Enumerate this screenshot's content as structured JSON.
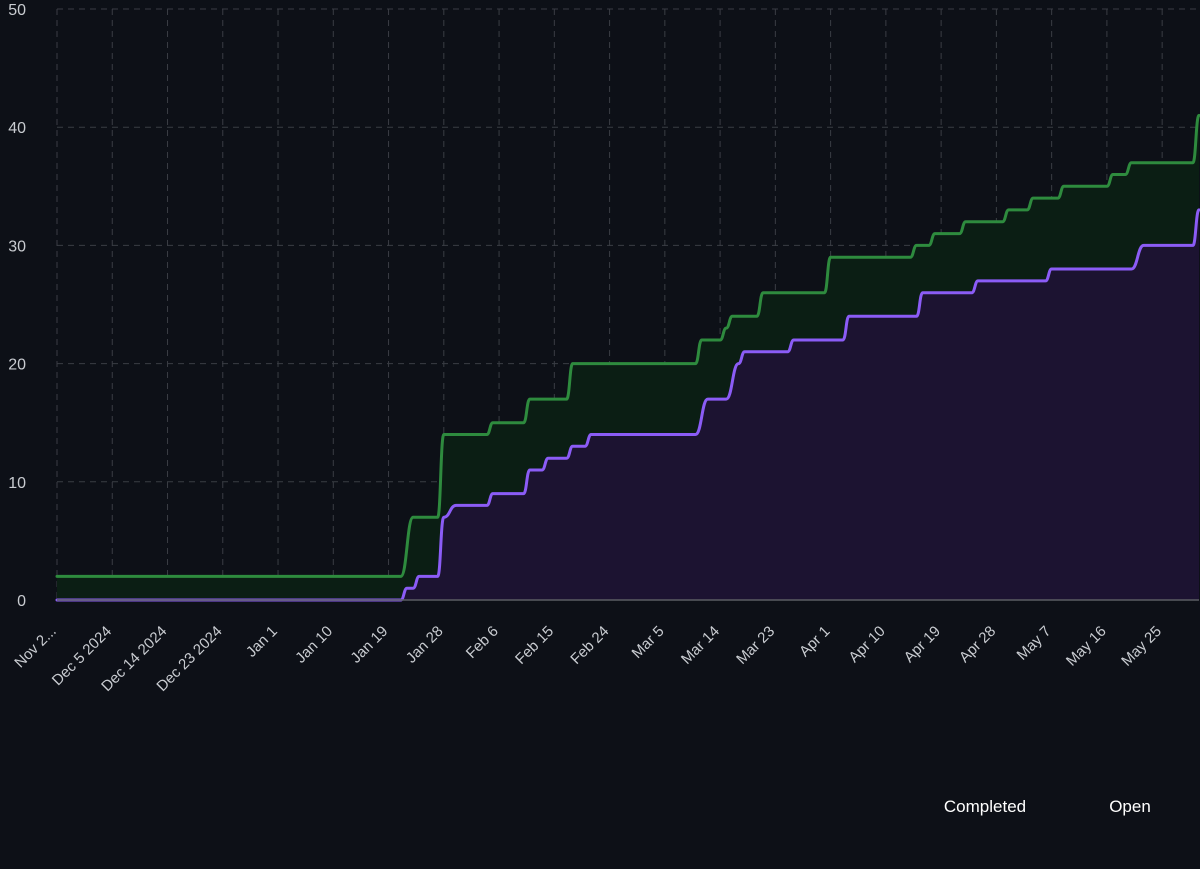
{
  "colors": {
    "background": "#0d1017",
    "grid": "#3a3d44",
    "axis": "#5b5d63",
    "completed": "#2e8b3e",
    "completed_fill": "#0b1e14",
    "open": "#8b5cf6",
    "open_fill": "#1c1331"
  },
  "legend": {
    "position": "bottom-right",
    "completed": "Completed",
    "open": "Open"
  },
  "chart_data": {
    "type": "area",
    "grid": true,
    "ylim": [
      0,
      50
    ],
    "yticks": [
      "0",
      "10",
      "20",
      "30",
      "40",
      "50"
    ],
    "xlim": [
      "2024-11-26",
      "2025-05-31"
    ],
    "xticks": [
      {
        "date": "2024-11-26",
        "label": "Nov 2..."
      },
      {
        "date": "2024-12-05",
        "label": "Dec 5 2024"
      },
      {
        "date": "2024-12-14",
        "label": "Dec 14 2024"
      },
      {
        "date": "2024-12-23",
        "label": "Dec 23 2024"
      },
      {
        "date": "2025-01-01",
        "label": "Jan 1"
      },
      {
        "date": "2025-01-10",
        "label": "Jan 10"
      },
      {
        "date": "2025-01-19",
        "label": "Jan 19"
      },
      {
        "date": "2025-01-28",
        "label": "Jan 28"
      },
      {
        "date": "2025-02-06",
        "label": "Feb 6"
      },
      {
        "date": "2025-02-15",
        "label": "Feb 15"
      },
      {
        "date": "2025-02-24",
        "label": "Feb 24"
      },
      {
        "date": "2025-03-05",
        "label": "Mar 5"
      },
      {
        "date": "2025-03-14",
        "label": "Mar 14"
      },
      {
        "date": "2025-03-23",
        "label": "Mar 23"
      },
      {
        "date": "2025-04-01",
        "label": "Apr 1"
      },
      {
        "date": "2025-04-10",
        "label": "Apr 10"
      },
      {
        "date": "2025-04-19",
        "label": "Apr 19"
      },
      {
        "date": "2025-04-28",
        "label": "Apr 28"
      },
      {
        "date": "2025-05-07",
        "label": "May 7"
      },
      {
        "date": "2025-05-16",
        "label": "May 16"
      },
      {
        "date": "2025-05-25",
        "label": "May 25"
      }
    ],
    "series": [
      {
        "name": "Completed",
        "key": "completed",
        "points": [
          [
            "2024-11-26",
            2
          ],
          [
            "2025-01-21",
            2
          ],
          [
            "2025-01-23",
            7
          ],
          [
            "2025-01-27",
            7
          ],
          [
            "2025-01-28",
            14
          ],
          [
            "2025-02-04",
            14
          ],
          [
            "2025-02-05",
            15
          ],
          [
            "2025-02-10",
            15
          ],
          [
            "2025-02-11",
            17
          ],
          [
            "2025-02-17",
            17
          ],
          [
            "2025-02-18",
            20
          ],
          [
            "2025-03-10",
            20
          ],
          [
            "2025-03-11",
            22
          ],
          [
            "2025-03-14",
            22
          ],
          [
            "2025-03-15",
            23
          ],
          [
            "2025-03-16",
            24
          ],
          [
            "2025-03-20",
            24
          ],
          [
            "2025-03-21",
            26
          ],
          [
            "2025-03-31",
            26
          ],
          [
            "2025-04-01",
            29
          ],
          [
            "2025-04-14",
            29
          ],
          [
            "2025-04-15",
            30
          ],
          [
            "2025-04-17",
            30
          ],
          [
            "2025-04-18",
            31
          ],
          [
            "2025-04-22",
            31
          ],
          [
            "2025-04-23",
            32
          ],
          [
            "2025-04-29",
            32
          ],
          [
            "2025-04-30",
            33
          ],
          [
            "2025-05-03",
            33
          ],
          [
            "2025-05-04",
            34
          ],
          [
            "2025-05-08",
            34
          ],
          [
            "2025-05-09",
            35
          ],
          [
            "2025-05-16",
            35
          ],
          [
            "2025-05-17",
            36
          ],
          [
            "2025-05-19",
            36
          ],
          [
            "2025-05-20",
            37
          ],
          [
            "2025-05-30",
            37
          ],
          [
            "2025-05-31",
            41
          ]
        ]
      },
      {
        "name": "Open",
        "key": "open",
        "points": [
          [
            "2024-11-26",
            0
          ],
          [
            "2025-01-21",
            0
          ],
          [
            "2025-01-22",
            1
          ],
          [
            "2025-01-23",
            1
          ],
          [
            "2025-01-24",
            2
          ],
          [
            "2025-01-27",
            2
          ],
          [
            "2025-01-28",
            7
          ],
          [
            "2025-01-30",
            8
          ],
          [
            "2025-02-04",
            8
          ],
          [
            "2025-02-05",
            9
          ],
          [
            "2025-02-10",
            9
          ],
          [
            "2025-02-11",
            11
          ],
          [
            "2025-02-13",
            11
          ],
          [
            "2025-02-14",
            12
          ],
          [
            "2025-02-17",
            12
          ],
          [
            "2025-02-18",
            13
          ],
          [
            "2025-02-20",
            13
          ],
          [
            "2025-02-21",
            14
          ],
          [
            "2025-03-10",
            14
          ],
          [
            "2025-03-12",
            17
          ],
          [
            "2025-03-15",
            17
          ],
          [
            "2025-03-17",
            20
          ],
          [
            "2025-03-18",
            21
          ],
          [
            "2025-03-25",
            21
          ],
          [
            "2025-03-26",
            22
          ],
          [
            "2025-04-03",
            22
          ],
          [
            "2025-04-04",
            24
          ],
          [
            "2025-04-15",
            24
          ],
          [
            "2025-04-16",
            26
          ],
          [
            "2025-04-24",
            26
          ],
          [
            "2025-04-25",
            27
          ],
          [
            "2025-05-06",
            27
          ],
          [
            "2025-05-07",
            28
          ],
          [
            "2025-05-20",
            28
          ],
          [
            "2025-05-22",
            30
          ],
          [
            "2025-05-30",
            30
          ],
          [
            "2025-05-31",
            33
          ]
        ]
      }
    ]
  }
}
